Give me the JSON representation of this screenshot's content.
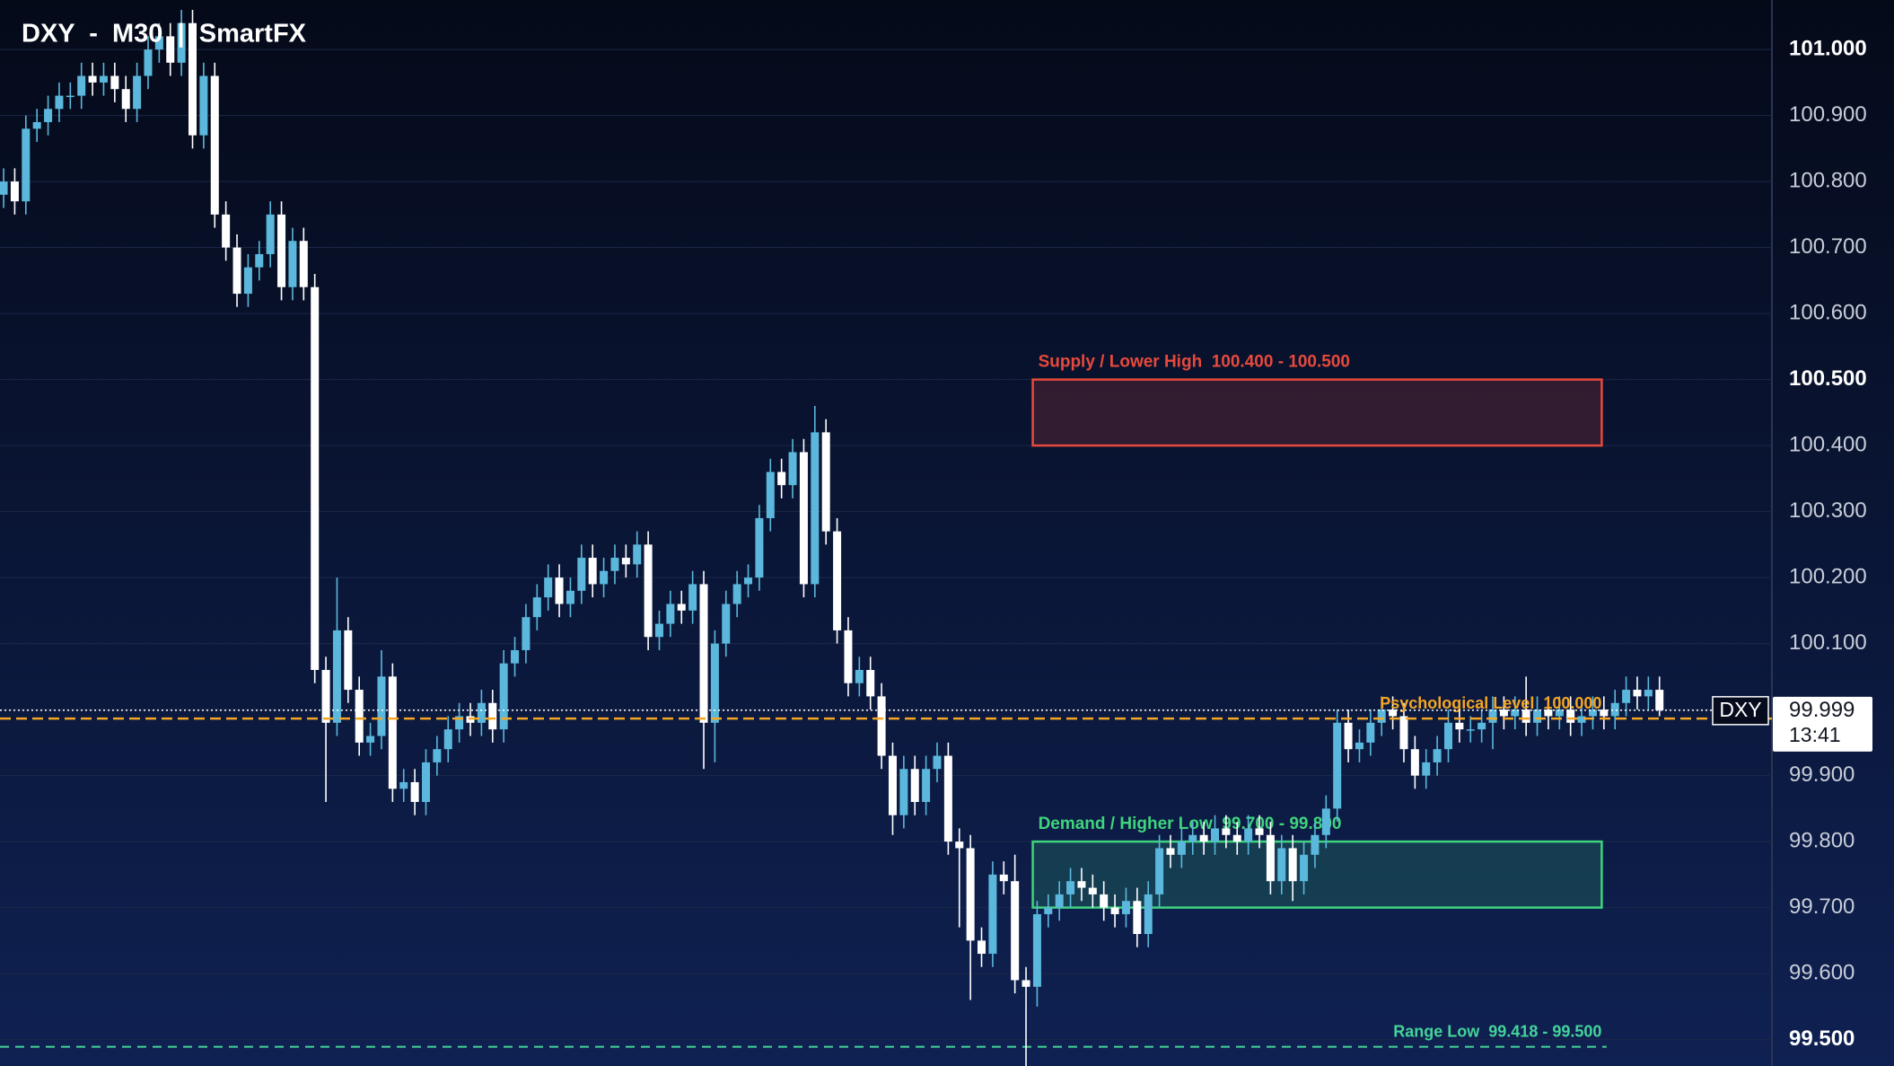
{
  "chart_data": {
    "type": "candlestick",
    "title": "DXY  -  M30  |  SmartFX",
    "ylim": [
      99.46,
      101.075
    ],
    "yticks": [
      {
        "value": 99.5,
        "label": "99.500"
      },
      {
        "value": 99.6,
        "label": "99.600"
      },
      {
        "value": 99.7,
        "label": "99.700"
      },
      {
        "value": 99.8,
        "label": "99.800"
      },
      {
        "value": 99.9,
        "label": "99.900"
      },
      {
        "value": 100,
        "label": "100.000"
      },
      {
        "value": 100.1,
        "label": "100.100"
      },
      {
        "value": 100.2,
        "label": "100.200"
      },
      {
        "value": 100.3,
        "label": "100.300"
      },
      {
        "value": 100.4,
        "label": "100.400"
      },
      {
        "value": 100.5,
        "label": "100.500"
      },
      {
        "value": 100.6,
        "label": "100.600"
      },
      {
        "value": 100.7,
        "label": "100.700"
      },
      {
        "value": 100.8,
        "label": "100.800"
      },
      {
        "value": 100.9,
        "label": "100.900"
      },
      {
        "value": 101,
        "label": "101.000"
      }
    ],
    "grid": true,
    "up_color": "#5bb8dc",
    "down_color": "#ffffff",
    "open": [
      100.78,
      100.8,
      100.77,
      100.88,
      100.89,
      100.91,
      100.93,
      100.93,
      100.96,
      100.95,
      100.96,
      100.94,
      100.91,
      100.96,
      101.0,
      101.02,
      100.98,
      101.04,
      100.87,
      100.96,
      100.75,
      100.7,
      100.63,
      100.67,
      100.69,
      100.75,
      100.64,
      100.71,
      100.64,
      100.06,
      99.98,
      100.12,
      100.03,
      99.95,
      99.96,
      100.05,
      99.88,
      99.89,
      99.86,
      99.92,
      99.94,
      99.97,
      99.99,
      99.98,
      100.01,
      99.97,
      100.07,
      100.09,
      100.14,
      100.17,
      100.2,
      100.16,
      100.18,
      100.23,
      100.19,
      100.21,
      100.23,
      100.22,
      100.25,
      100.11,
      100.13,
      100.16,
      100.15,
      100.19,
      99.98,
      100.1,
      100.16,
      100.19,
      100.2,
      100.29,
      100.36,
      100.34,
      100.39,
      100.19,
      100.42,
      100.27,
      100.12,
      100.04,
      100.06,
      100.02,
      99.93,
      99.84,
      99.91,
      99.86,
      99.91,
      99.93,
      99.8,
      99.79,
      99.65,
      99.63,
      99.75,
      99.74,
      99.59,
      99.58,
      99.69,
      99.7,
      99.72,
      99.74,
      99.73,
      99.72,
      99.7,
      99.69,
      99.71,
      99.66,
      99.72,
      99.79,
      99.78,
      99.8,
      99.81,
      99.8,
      99.82,
      99.81,
      99.8,
      99.82,
      99.81,
      99.74,
      99.79,
      99.74,
      99.78,
      99.81,
      99.85,
      99.98,
      99.94,
      99.95,
      99.98,
      100.0,
      99.99,
      99.94,
      99.9,
      99.92,
      99.94,
      99.98,
      99.97,
      99.97,
      99.98,
      100.0,
      99.99,
      100.0,
      99.98,
      100.0,
      99.99,
      100.0,
      99.98,
      99.99,
      100.0,
      99.99,
      100.01,
      100.03,
      100.02,
      100.03
    ],
    "high": [
      100.82,
      100.82,
      100.9,
      100.91,
      100.93,
      100.95,
      100.95,
      100.98,
      100.98,
      100.98,
      100.98,
      100.96,
      100.98,
      101.02,
      101.04,
      101.04,
      101.06,
      101.06,
      100.98,
      100.98,
      100.77,
      100.72,
      100.69,
      100.71,
      100.77,
      100.77,
      100.73,
      100.73,
      100.66,
      100.08,
      100.2,
      100.14,
      100.05,
      99.98,
      100.09,
      100.07,
      99.91,
      99.91,
      99.94,
      99.96,
      99.99,
      100.01,
      100.01,
      100.03,
      100.03,
      100.09,
      100.11,
      100.16,
      100.19,
      100.22,
      100.22,
      100.2,
      100.25,
      100.25,
      100.23,
      100.25,
      100.25,
      100.27,
      100.27,
      100.15,
      100.18,
      100.18,
      100.21,
      100.21,
      100.12,
      100.18,
      100.21,
      100.22,
      100.31,
      100.38,
      100.38,
      100.41,
      100.41,
      100.46,
      100.44,
      100.29,
      100.14,
      100.08,
      100.08,
      100.04,
      99.95,
      99.93,
      99.93,
      99.93,
      99.95,
      99.95,
      99.82,
      99.81,
      99.67,
      99.77,
      99.77,
      99.78,
      99.61,
      99.71,
      99.72,
      99.74,
      99.76,
      99.76,
      99.75,
      99.74,
      99.72,
      99.73,
      99.73,
      99.74,
      99.81,
      99.81,
      99.82,
      99.83,
      99.83,
      99.84,
      99.84,
      99.83,
      99.84,
      99.84,
      99.83,
      99.81,
      99.81,
      99.8,
      99.83,
      99.87,
      100.0,
      100.0,
      99.97,
      100.0,
      100.02,
      100.02,
      100.01,
      99.96,
      99.94,
      99.96,
      100.0,
      100.0,
      99.99,
      100.0,
      100.02,
      100.02,
      100.02,
      100.05,
      100.02,
      100.02,
      100.02,
      100.02,
      100.01,
      100.02,
      100.02,
      100.03,
      100.05,
      100.05,
      100.05,
      100.05
    ],
    "low": [
      100.76,
      100.75,
      100.75,
      100.86,
      100.87,
      100.89,
      100.91,
      100.91,
      100.93,
      100.93,
      100.92,
      100.89,
      100.89,
      100.94,
      100.98,
      100.96,
      100.96,
      100.85,
      100.85,
      100.73,
      100.68,
      100.61,
      100.61,
      100.65,
      100.67,
      100.62,
      100.62,
      100.62,
      100.04,
      99.86,
      99.96,
      100.01,
      99.93,
      99.93,
      99.94,
      99.86,
      99.86,
      99.84,
      99.84,
      99.9,
      99.92,
      99.95,
      99.96,
      99.96,
      99.95,
      99.95,
      100.05,
      100.07,
      100.12,
      100.15,
      100.14,
      100.14,
      100.16,
      100.17,
      100.17,
      100.19,
      100.2,
      100.2,
      100.09,
      100.09,
      100.11,
      100.13,
      100.13,
      99.91,
      99.92,
      100.08,
      100.14,
      100.17,
      100.18,
      100.27,
      100.32,
      100.32,
      100.17,
      100.17,
      100.25,
      100.1,
      100.02,
      100.02,
      100.0,
      99.91,
      99.81,
      99.82,
      99.84,
      99.84,
      99.89,
      99.78,
      99.67,
      99.56,
      99.61,
      99.61,
      99.72,
      99.57,
      99.46,
      99.55,
      99.67,
      99.68,
      99.7,
      99.71,
      99.7,
      99.68,
      99.67,
      99.67,
      99.64,
      99.64,
      99.7,
      99.76,
      99.76,
      99.78,
      99.78,
      99.78,
      99.79,
      99.78,
      99.78,
      99.79,
      99.72,
      99.72,
      99.71,
      99.72,
      99.76,
      99.79,
      99.83,
      99.92,
      99.92,
      99.93,
      99.96,
      99.97,
      99.92,
      99.88,
      99.88,
      99.9,
      99.92,
      99.95,
      99.95,
      99.95,
      99.94,
      99.97,
      99.97,
      99.96,
      99.96,
      99.97,
      99.97,
      99.96,
      99.96,
      99.97,
      99.97,
      99.97,
      99.99,
      100.0,
      100.0,
      99.99
    ],
    "close": [
      100.8,
      100.77,
      100.88,
      100.89,
      100.91,
      100.93,
      100.93,
      100.96,
      100.95,
      100.96,
      100.94,
      100.91,
      100.96,
      101.0,
      101.02,
      100.98,
      101.04,
      100.87,
      100.96,
      100.75,
      100.7,
      100.63,
      100.67,
      100.69,
      100.75,
      100.64,
      100.71,
      100.64,
      100.06,
      99.98,
      100.12,
      100.03,
      99.95,
      99.96,
      100.05,
      99.88,
      99.89,
      99.86,
      99.92,
      99.94,
      99.97,
      99.99,
      99.98,
      100.01,
      99.97,
      100.07,
      100.09,
      100.14,
      100.17,
      100.2,
      100.16,
      100.18,
      100.23,
      100.19,
      100.21,
      100.23,
      100.22,
      100.25,
      100.11,
      100.13,
      100.16,
      100.15,
      100.19,
      99.98,
      100.1,
      100.16,
      100.19,
      100.2,
      100.29,
      100.36,
      100.34,
      100.39,
      100.19,
      100.42,
      100.27,
      100.12,
      100.04,
      100.06,
      100.02,
      99.93,
      99.84,
      99.91,
      99.86,
      99.91,
      99.93,
      99.8,
      99.79,
      99.65,
      99.63,
      99.75,
      99.74,
      99.59,
      99.58,
      99.69,
      99.7,
      99.72,
      99.74,
      99.73,
      99.72,
      99.7,
      99.69,
      99.71,
      99.66,
      99.72,
      99.79,
      99.78,
      99.8,
      99.81,
      99.8,
      99.82,
      99.81,
      99.8,
      99.82,
      99.81,
      99.74,
      99.79,
      99.74,
      99.78,
      99.81,
      99.85,
      99.98,
      99.94,
      99.95,
      99.98,
      100.0,
      99.99,
      99.94,
      99.9,
      99.92,
      99.94,
      99.98,
      99.97,
      99.97,
      99.98,
      100.0,
      99.99,
      100.0,
      99.98,
      100.0,
      99.99,
      100.0,
      99.98,
      99.99,
      100.0,
      99.99,
      100.01,
      100.03,
      100.02,
      100.03,
      99.999
    ],
    "zones": [
      {
        "label": "Supply / Lower High  100.400 - 100.500",
        "low": 100.4,
        "high": 100.5,
        "color": "#e8493c",
        "style": "box"
      },
      {
        "label": "Demand / Higher Low  99.700 - 99.800",
        "low": 99.7,
        "high": 99.8,
        "color": "#3fd47e",
        "style": "box"
      },
      {
        "label": "Range Low  99.418 - 99.500",
        "low": 99.418,
        "high": 99.5,
        "color": "#44d39a",
        "style": "line"
      }
    ],
    "levels": [
      {
        "label": "Psychological Level  100.000",
        "value": 100,
        "color": "#f5a623"
      }
    ],
    "last_price": {
      "symbol": "DXY",
      "value": 99.999,
      "countdown": "13:41"
    }
  }
}
